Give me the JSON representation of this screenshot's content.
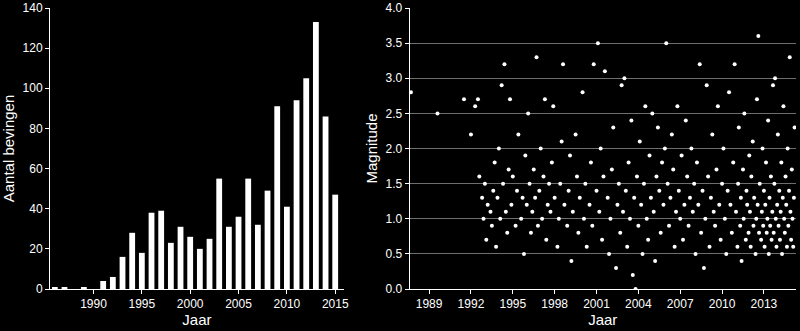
{
  "chart_data": [
    {
      "type": "bar",
      "x": [
        1986,
        1987,
        1988,
        1989,
        1990,
        1991,
        1992,
        1993,
        1994,
        1995,
        1996,
        1997,
        1998,
        1999,
        2000,
        2001,
        2002,
        2003,
        2004,
        2005,
        2006,
        2007,
        2008,
        2009,
        2010,
        2011,
        2012,
        2013,
        2014,
        2015
      ],
      "values": [
        1,
        1,
        0,
        1,
        0,
        4,
        6,
        16,
        28,
        18,
        38,
        39,
        23,
        31,
        26,
        20,
        25,
        55,
        31,
        36,
        55,
        32,
        49,
        91,
        41,
        94,
        105,
        133,
        86,
        47
      ],
      "color": "#ffffff",
      "xlabel": "Jaar",
      "ylabel": "Aantal bevingen",
      "xlim": [
        1985.5,
        2015.9
      ],
      "ylim": [
        0,
        140
      ],
      "xticks": [
        1990,
        1995,
        2000,
        2005,
        2010,
        2015
      ],
      "yticks": [
        0,
        20,
        40,
        60,
        80,
        100,
        120,
        140
      ],
      "grid": false
    },
    {
      "type": "scatter",
      "x": [
        1987.7,
        1989.6,
        1991.5,
        1992.0,
        1992.3,
        1992.5,
        1992.6,
        1992.8,
        1992.9,
        1993.0,
        1993.1,
        1993.2,
        1993.4,
        1993.5,
        1993.6,
        1993.7,
        1993.8,
        1993.9,
        1994.0,
        1994.1,
        1994.2,
        1994.3,
        1994.4,
        1994.5,
        1994.6,
        1994.7,
        1994.8,
        1994.9,
        1995.0,
        1995.2,
        1995.3,
        1995.4,
        1995.6,
        1995.7,
        1995.8,
        1995.9,
        1996.0,
        1996.1,
        1996.2,
        1996.3,
        1996.4,
        1996.5,
        1996.6,
        1996.7,
        1996.8,
        1996.9,
        1997.0,
        1997.1,
        1997.2,
        1997.3,
        1997.4,
        1997.5,
        1997.6,
        1997.7,
        1997.8,
        1997.9,
        1998.0,
        1998.2,
        1998.3,
        1998.4,
        1998.5,
        1998.6,
        1998.7,
        1998.9,
        1999.0,
        1999.1,
        1999.2,
        1999.3,
        1999.5,
        1999.6,
        1999.7,
        1999.8,
        2000.0,
        2000.1,
        2000.2,
        2000.3,
        2000.5,
        2000.6,
        2000.7,
        2000.8,
        2001.0,
        2001.1,
        2001.2,
        2001.3,
        2001.4,
        2001.5,
        2001.6,
        2001.8,
        2001.9,
        2002.0,
        2002.1,
        2002.2,
        2002.4,
        2002.5,
        2002.6,
        2002.7,
        2002.8,
        2002.9,
        2003.0,
        2003.1,
        2003.2,
        2003.3,
        2003.4,
        2003.5,
        2003.6,
        2003.7,
        2003.8,
        2003.9,
        2004.0,
        2004.1,
        2004.2,
        2004.3,
        2004.4,
        2004.5,
        2004.6,
        2004.7,
        2004.8,
        2004.9,
        2005.0,
        2005.1,
        2005.2,
        2005.3,
        2005.4,
        2005.5,
        2005.6,
        2005.7,
        2005.8,
        2005.9,
        2006.0,
        2006.1,
        2006.2,
        2006.3,
        2006.4,
        2006.5,
        2006.6,
        2006.7,
        2006.8,
        2006.9,
        2007.0,
        2007.1,
        2007.2,
        2007.3,
        2007.4,
        2007.5,
        2007.6,
        2007.7,
        2007.8,
        2007.9,
        2008.0,
        2008.1,
        2008.2,
        2008.3,
        2008.4,
        2008.5,
        2008.6,
        2008.7,
        2008.8,
        2008.9,
        2009.0,
        2009.1,
        2009.2,
        2009.3,
        2009.4,
        2009.5,
        2009.6,
        2009.7,
        2009.8,
        2009.9,
        2010.0,
        2010.1,
        2010.2,
        2010.3,
        2010.4,
        2010.5,
        2010.6,
        2010.7,
        2010.8,
        2010.9,
        2011.0,
        2011.1,
        2011.15,
        2011.2,
        2011.3,
        2011.35,
        2011.4,
        2011.5,
        2011.55,
        2011.6,
        2011.7,
        2011.75,
        2011.8,
        2011.9,
        2011.95,
        2012.0,
        2012.05,
        2012.1,
        2012.2,
        2012.25,
        2012.3,
        2012.4,
        2012.45,
        2012.5,
        2012.55,
        2012.6,
        2012.65,
        2012.7,
        2012.8,
        2012.85,
        2012.9,
        2012.95,
        2013.0,
        2013.05,
        2013.1,
        2013.15,
        2013.2,
        2013.25,
        2013.3,
        2013.35,
        2013.4,
        2013.45,
        2013.5,
        2013.55,
        2013.6,
        2013.65,
        2013.7,
        2013.75,
        2013.8,
        2013.85,
        2013.9,
        2013.95,
        2014.0,
        2014.05,
        2014.1,
        2014.15,
        2014.2,
        2014.25,
        2014.3,
        2014.35,
        2014.4,
        2014.45,
        2014.5,
        2014.55,
        2014.6,
        2014.65,
        2014.7,
        2014.75,
        2014.8,
        2014.85,
        2014.9,
        2014.95,
        2015.0,
        2015.05,
        2015.1,
        2015.15,
        2015.2
      ],
      "values": [
        2.8,
        2.5,
        2.7,
        2.2,
        2.6,
        2.7,
        1.6,
        1.3,
        1.0,
        1.5,
        0.7,
        1.2,
        1.1,
        0.9,
        1.4,
        1.8,
        0.6,
        1.3,
        2.0,
        1.0,
        2.9,
        1.5,
        3.2,
        1.1,
        0.8,
        1.7,
        2.7,
        1.2,
        1.6,
        0.9,
        1.4,
        2.2,
        1.0,
        1.3,
        0.5,
        1.9,
        1.2,
        2.5,
        1.5,
        0.8,
        1.1,
        1.7,
        1.3,
        3.3,
        0.9,
        1.4,
        2.0,
        1.0,
        1.6,
        2.7,
        0.7,
        1.2,
        1.5,
        1.1,
        1.8,
        2.6,
        1.3,
        0.6,
        1.0,
        1.5,
        2.1,
        3.2,
        1.2,
        0.9,
        1.4,
        1.9,
        0.4,
        1.1,
        2.2,
        1.6,
        0.8,
        1.3,
        2.8,
        1.0,
        1.5,
        0.6,
        1.2,
        1.8,
        0.9,
        3.2,
        1.4,
        3.5,
        1.1,
        2.0,
        0.7,
        1.6,
        3.1,
        1.3,
        0.5,
        1.0,
        1.7,
        2.3,
        0.3,
        1.2,
        1.5,
        0.8,
        2.9,
        1.1,
        3.0,
        1.4,
        0.6,
        1.8,
        1.0,
        2.4,
        0.2,
        1.3,
        0.0,
        1.6,
        0.9,
        2.1,
        1.2,
        0.5,
        1.5,
        2.6,
        1.0,
        0.7,
        1.9,
        1.3,
        2.5,
        1.1,
        0.4,
        1.6,
        2.3,
        1.4,
        0.8,
        1.8,
        1.2,
        2.0,
        3.5,
        1.5,
        0.9,
        1.3,
        2.2,
        1.7,
        0.6,
        1.1,
        2.6,
        1.4,
        1.0,
        1.9,
        0.7,
        1.2,
        2.4,
        1.6,
        0.9,
        1.3,
        2.0,
        1.1,
        1.5,
        0.5,
        1.8,
        1.2,
        3.2,
        0.8,
        1.4,
        0.3,
        1.0,
        2.9,
        1.6,
        0.6,
        1.3,
        2.2,
        1.1,
        0.9,
        1.7,
        2.6,
        1.2,
        0.7,
        1.5,
        2.0,
        1.0,
        0.5,
        1.4,
        2.8,
        1.2,
        0.8,
        1.8,
        3.2,
        1.1,
        0.6,
        1.5,
        2.3,
        0.9,
        1.3,
        0.4,
        1.7,
        1.0,
        2.5,
        0.7,
        1.4,
        1.2,
        0.8,
        1.9,
        1.1,
        0.6,
        1.6,
        2.1,
        0.9,
        1.3,
        0.5,
        1.0,
        2.7,
        1.2,
        3.6,
        0.8,
        1.5,
        0.7,
        1.1,
        2.0,
        0.9,
        1.4,
        0.6,
        1.2,
        1.8,
        0.8,
        1.0,
        2.4,
        0.5,
        1.3,
        0.9,
        1.6,
        0.7,
        1.1,
        2.9,
        0.8,
        1.5,
        3.0,
        1.0,
        0.6,
        1.2,
        2.2,
        0.9,
        1.4,
        0.7,
        1.1,
        1.8,
        0.5,
        1.3,
        2.6,
        1.0,
        0.8,
        1.6,
        1.2,
        0.6,
        2.0,
        0.9,
        1.4,
        3.3,
        1.1,
        0.7,
        1.7,
        1.0,
        0.6,
        1.3,
        2.3
      ],
      "color": "#ffffff",
      "marker": "circle",
      "xlabel": "Jaar",
      "ylabel": "Magnitude",
      "xlim": [
        1987.6,
        2015.3
      ],
      "ylim": [
        0,
        4
      ],
      "xticks": [
        1989,
        1992,
        1995,
        1998,
        2001,
        2004,
        2007,
        2010,
        2013
      ],
      "yticks": [
        {
          "value": 0,
          "label": "0.0"
        },
        {
          "value": 0.5,
          "label": "0.5"
        },
        {
          "value": 1,
          "label": "1.0"
        },
        {
          "value": 1.5,
          "label": "1.5"
        },
        {
          "value": 2,
          "label": "2.0"
        },
        {
          "value": 2.5,
          "label": "2.5"
        },
        {
          "value": 3,
          "label": "3.0"
        },
        {
          "value": 3.5,
          "label": "3.5"
        },
        {
          "value": 4,
          "label": "4.0"
        }
      ],
      "grid": true
    }
  ]
}
